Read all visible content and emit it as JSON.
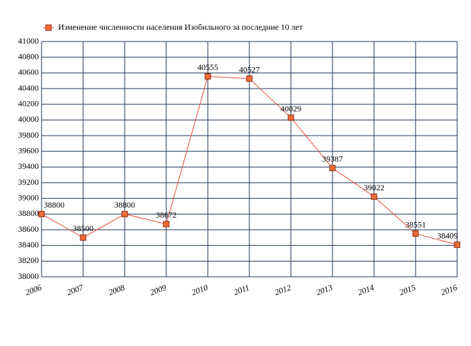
{
  "chart_data": {
    "type": "line",
    "categories": [
      "2006",
      "2007",
      "2008",
      "2009",
      "2010",
      "2011",
      "2012",
      "2013",
      "2014",
      "2015",
      "2016"
    ],
    "series": [
      {
        "name": "Изменение численности населения Изобильного за последние 10 лет",
        "color": "#e84a3a",
        "marker_color": "#f26b35",
        "values": [
          38800,
          38500,
          38800,
          38672,
          40555,
          40527,
          40029,
          39387,
          39022,
          38551,
          38409
        ]
      }
    ],
    "ylim": [
      38000,
      41000
    ],
    "yticks": [
      38000,
      38200,
      38400,
      38600,
      38800,
      39000,
      39200,
      39400,
      39600,
      39800,
      40000,
      40200,
      40400,
      40600,
      40800,
      41000
    ],
    "grid": true,
    "legend": "top"
  }
}
